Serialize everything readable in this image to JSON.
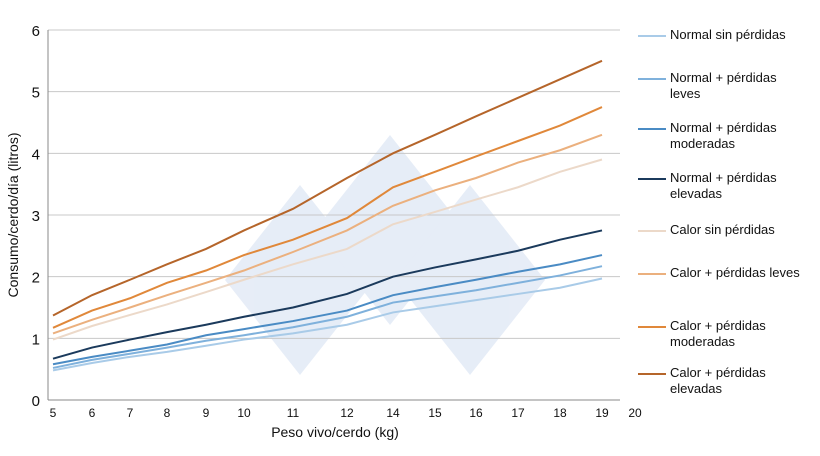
{
  "chart_data": {
    "type": "line",
    "title": "",
    "xlabel": "Peso vivo/cerdo (kg)",
    "ylabel": "Consumo/cerdo/día (litros)",
    "x_tick_labels": [
      "5",
      "6",
      "7",
      "8",
      "9",
      "10",
      "11",
      "12",
      "14",
      "15",
      "16",
      "17",
      "18",
      "19",
      "20"
    ],
    "x": [
      "5",
      "6",
      "7",
      "8",
      "9",
      "10",
      "11",
      "12",
      "14",
      "15",
      "16",
      "17",
      "18",
      "19"
    ],
    "y_ticks": [
      0,
      1,
      2,
      3,
      4,
      5,
      6
    ],
    "ylim": [
      0,
      6
    ],
    "grid": "horizontal",
    "legend": "right",
    "series": [
      {
        "name": "Normal sin pérdidas",
        "color": "#a9cbe8",
        "values": [
          0.48,
          0.6,
          0.7,
          0.78,
          0.88,
          0.98,
          1.08,
          1.22,
          1.42,
          1.52,
          1.62,
          1.72,
          1.82,
          1.97
        ]
      },
      {
        "name": "Normal + pérdidas leves",
        "color": "#7fb1dc",
        "values": [
          0.52,
          0.65,
          0.75,
          0.85,
          0.96,
          1.05,
          1.18,
          1.35,
          1.58,
          1.68,
          1.78,
          1.9,
          2.02,
          2.17
        ]
      },
      {
        "name": "Normal + pérdidas moderadas",
        "color": "#4a8bc4",
        "values": [
          0.58,
          0.7,
          0.8,
          0.9,
          1.05,
          1.15,
          1.28,
          1.45,
          1.7,
          1.83,
          1.95,
          2.08,
          2.2,
          2.35
        ]
      },
      {
        "name": "Normal + pérdidas elevadas",
        "color": "#1b3a5c",
        "values": [
          0.67,
          0.85,
          0.98,
          1.1,
          1.22,
          1.35,
          1.5,
          1.72,
          2.0,
          2.15,
          2.28,
          2.42,
          2.6,
          2.75
        ]
      },
      {
        "name": "Calor sin pérdidas",
        "color": "#ecd9c9",
        "values": [
          0.98,
          1.2,
          1.38,
          1.55,
          1.75,
          1.95,
          2.2,
          2.45,
          2.85,
          3.05,
          3.25,
          3.45,
          3.7,
          3.9
        ]
      },
      {
        "name": "Calor + pérdidas leves",
        "color": "#ebb07e",
        "values": [
          1.08,
          1.3,
          1.5,
          1.7,
          1.9,
          2.1,
          2.4,
          2.75,
          3.15,
          3.4,
          3.6,
          3.85,
          4.05,
          4.3
        ]
      },
      {
        "name": "Calor + pérdidas moderadas",
        "color": "#e0883a",
        "values": [
          1.17,
          1.45,
          1.65,
          1.9,
          2.1,
          2.35,
          2.6,
          2.95,
          3.45,
          3.7,
          3.95,
          4.2,
          4.45,
          4.75
        ]
      },
      {
        "name": "Calor + pérdidas elevadas",
        "color": "#b5652a",
        "values": [
          1.37,
          1.7,
          1.95,
          2.2,
          2.45,
          2.75,
          3.1,
          3.6,
          4.0,
          4.3,
          4.6,
          4.9,
          5.2,
          5.5
        ]
      }
    ]
  }
}
